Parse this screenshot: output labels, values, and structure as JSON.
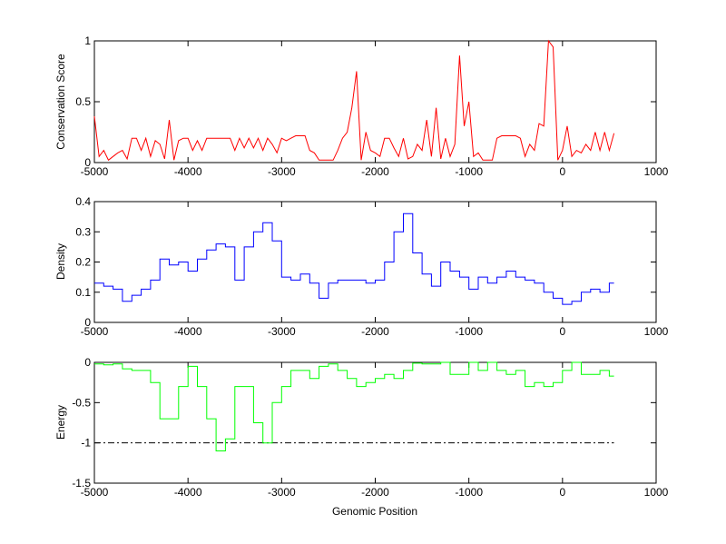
{
  "chart_data": [
    {
      "type": "line",
      "ylabel": "Conservation Score",
      "xlabel": "",
      "color": "#ff0000",
      "xlim": [
        -5000,
        1000
      ],
      "ylim": [
        0,
        1
      ],
      "xticks": [
        -5000,
        -4000,
        -3000,
        -2000,
        -1000,
        0,
        1000
      ],
      "yticks": [
        0,
        0.5,
        1
      ],
      "x_start": -5000,
      "x_step": 50,
      "values": [
        0.38,
        0.05,
        0.1,
        0.02,
        0.05,
        0.08,
        0.1,
        0.03,
        0.2,
        0.2,
        0.1,
        0.2,
        0.05,
        0.18,
        0.15,
        0.03,
        0.35,
        0.02,
        0.18,
        0.2,
        0.2,
        0.1,
        0.18,
        0.1,
        0.2,
        0.2,
        0.2,
        0.2,
        0.2,
        0.2,
        0.1,
        0.2,
        0.12,
        0.2,
        0.12,
        0.2,
        0.1,
        0.2,
        0.15,
        0.08,
        0.2,
        0.18,
        0.2,
        0.22,
        0.22,
        0.22,
        0.1,
        0.08,
        0.02,
        0.02,
        0.02,
        0.02,
        0.1,
        0.2,
        0.25,
        0.45,
        0.75,
        0.02,
        0.25,
        0.1,
        0.08,
        0.05,
        0.2,
        0.2,
        0.12,
        0.05,
        0.2,
        0.03,
        0.05,
        0.15,
        0.1,
        0.35,
        0.05,
        0.45,
        0.03,
        0.2,
        0.05,
        0.15,
        0.88,
        0.3,
        0.5,
        0.05,
        0.08,
        0.02,
        0.02,
        0.02,
        0.2,
        0.22,
        0.22,
        0.22,
        0.22,
        0.2,
        0.05,
        0.15,
        0.1,
        0.32,
        0.3,
        1.0,
        0.95,
        0.02,
        0.1,
        0.3,
        0.05,
        0.1,
        0.08,
        0.15,
        0.1,
        0.25,
        0.1,
        0.25,
        0.1,
        0.24
      ]
    },
    {
      "type": "line",
      "ylabel": "Density",
      "xlabel": "",
      "color": "#0000ff",
      "xlim": [
        -5000,
        1000
      ],
      "ylim": [
        0,
        0.4
      ],
      "xticks": [
        -5000,
        -4000,
        -3000,
        -2000,
        -1000,
        0,
        1000
      ],
      "yticks": [
        0,
        0.1,
        0.2,
        0.3,
        0.4
      ],
      "x_start": -5000,
      "x_step": 100,
      "values": [
        0.13,
        0.12,
        0.11,
        0.07,
        0.09,
        0.11,
        0.14,
        0.21,
        0.19,
        0.2,
        0.17,
        0.21,
        0.24,
        0.26,
        0.25,
        0.14,
        0.25,
        0.3,
        0.33,
        0.27,
        0.15,
        0.14,
        0.16,
        0.13,
        0.08,
        0.13,
        0.14,
        0.14,
        0.14,
        0.13,
        0.14,
        0.2,
        0.3,
        0.36,
        0.23,
        0.16,
        0.12,
        0.2,
        0.17,
        0.15,
        0.11,
        0.15,
        0.13,
        0.15,
        0.17,
        0.15,
        0.14,
        0.13,
        0.1,
        0.08,
        0.06,
        0.07,
        0.1,
        0.11,
        0.1,
        0.13
      ]
    },
    {
      "type": "line",
      "ylabel": "Energy",
      "xlabel": "Genomic Position",
      "color": "#00ff00",
      "xlim": [
        -5000,
        1000
      ],
      "ylim": [
        -1.5,
        0
      ],
      "xticks": [
        -5000,
        -4000,
        -3000,
        -2000,
        -1000,
        0,
        1000
      ],
      "yticks": [
        -1.5,
        -1,
        -0.5,
        0
      ],
      "x_start": -5000,
      "x_step": 100,
      "values": [
        -0.02,
        -0.03,
        -0.02,
        -0.08,
        -0.1,
        -0.1,
        -0.25,
        -0.7,
        -0.7,
        -0.3,
        -0.05,
        -0.3,
        -0.7,
        -1.1,
        -0.95,
        -0.3,
        -0.3,
        -0.75,
        -1.0,
        -0.5,
        -0.3,
        -0.1,
        -0.1,
        -0.2,
        -0.05,
        -0.02,
        -0.1,
        -0.2,
        -0.3,
        -0.25,
        -0.2,
        -0.15,
        -0.2,
        -0.1,
        -0.01,
        -0.02,
        -0.02,
        0,
        -0.15,
        -0.15,
        0,
        -0.1,
        0,
        -0.1,
        -0.15,
        -0.1,
        -0.3,
        -0.25,
        -0.3,
        -0.25,
        -0.1,
        0,
        -0.15,
        -0.15,
        -0.1,
        -0.17
      ],
      "threshold": {
        "y": -1,
        "x_range": [
          -5000,
          550
        ],
        "style": "dash-dot",
        "color": "#000000"
      }
    }
  ]
}
